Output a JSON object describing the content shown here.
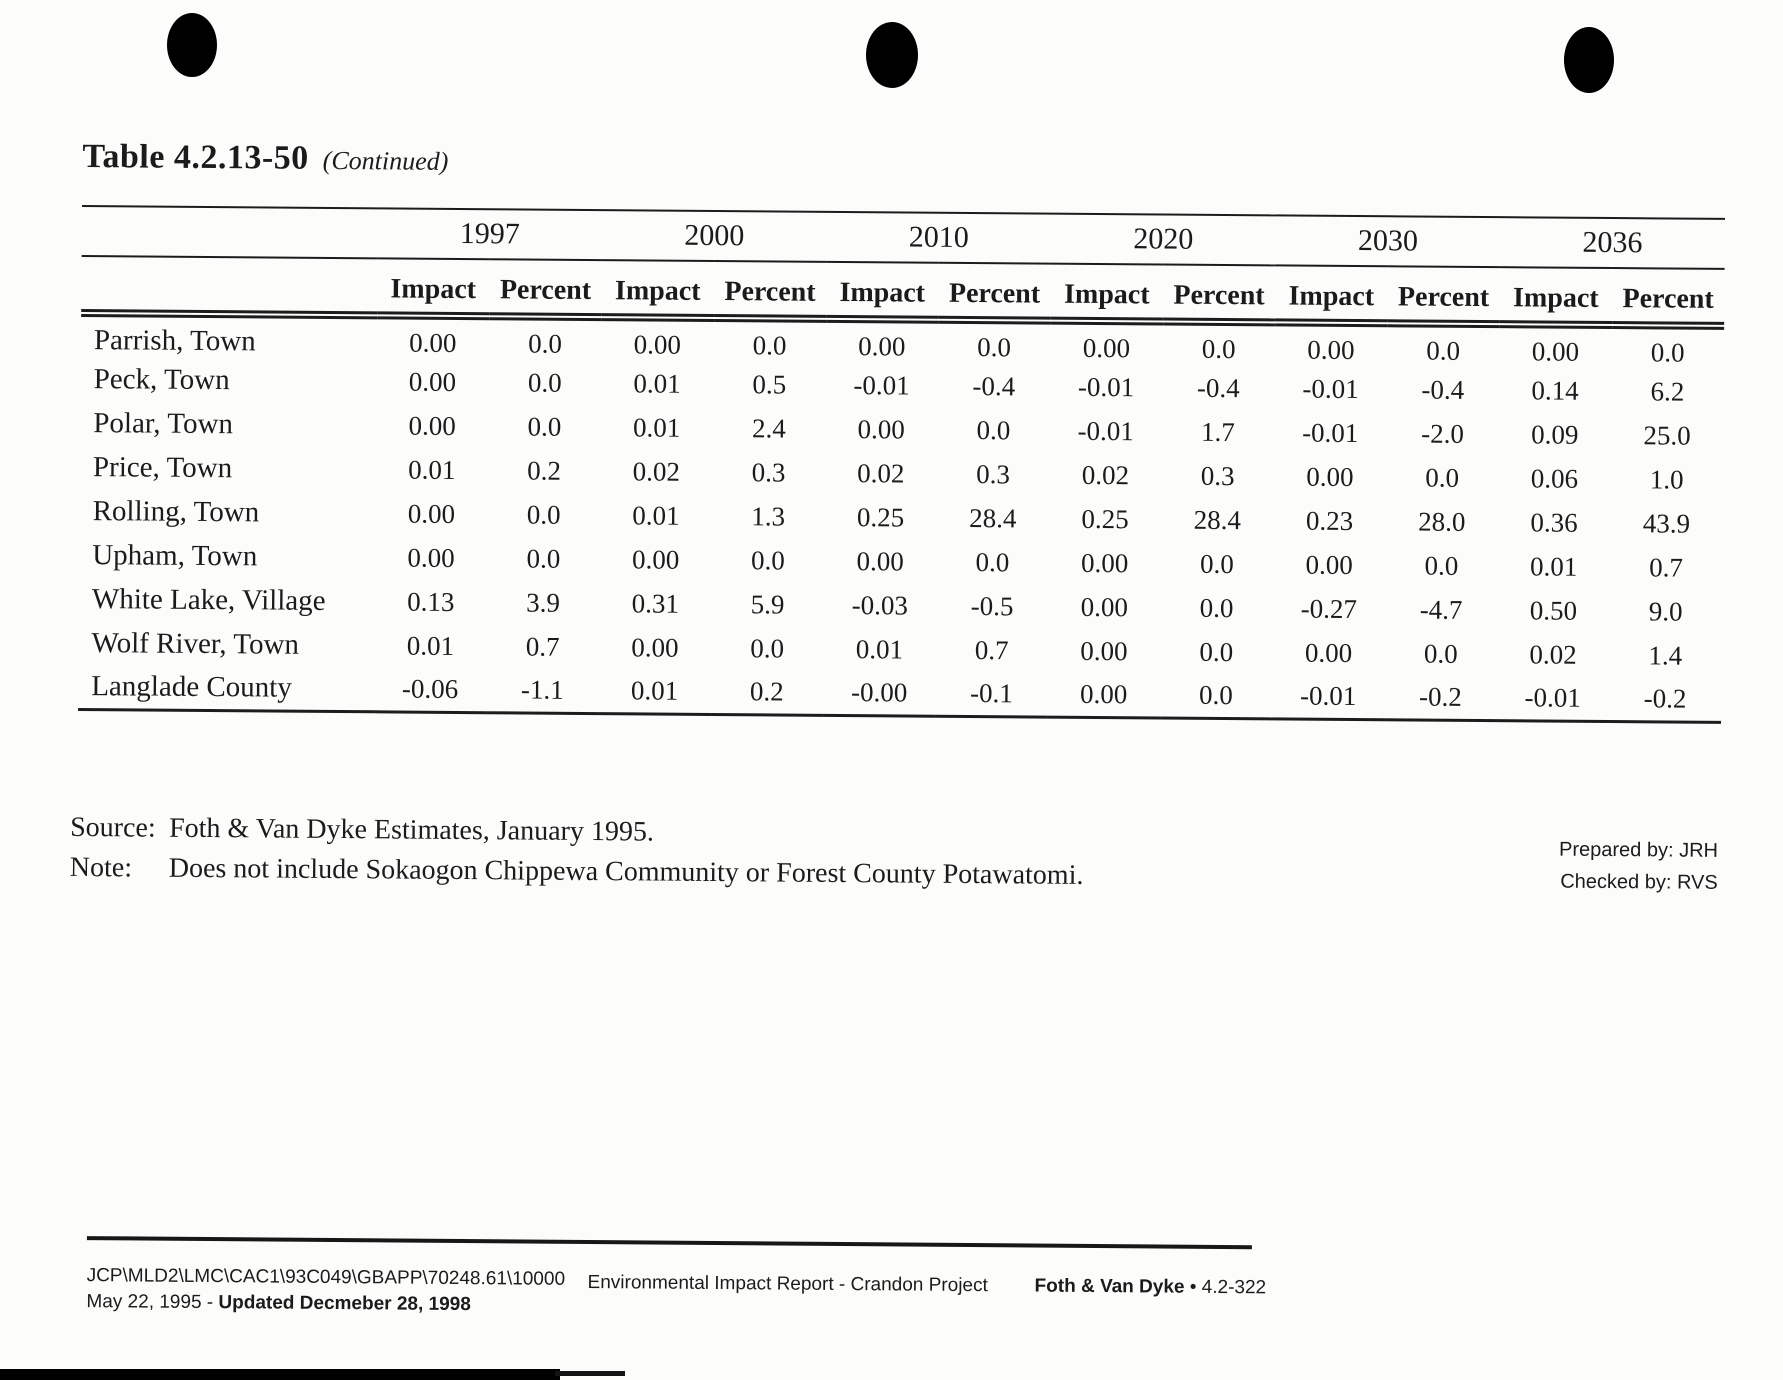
{
  "page": {
    "title": "Table 4.2.13-50",
    "title_suffix": "(Continued)"
  },
  "table": {
    "year_groups": [
      "1997",
      "2000",
      "2010",
      "2020",
      "2030",
      "2036"
    ],
    "sub_headers": [
      "Impact",
      "Percent"
    ],
    "rows": [
      {
        "label": "Parrish, Town",
        "values": [
          "0.00",
          "0.0",
          "0.00",
          "0.0",
          "0.00",
          "0.0",
          "0.00",
          "0.0",
          "0.00",
          "0.0",
          "0.00",
          "0.0"
        ]
      },
      {
        "label": "Peck, Town",
        "values": [
          "0.00",
          "0.0",
          "0.01",
          "0.5",
          "-0.01",
          "-0.4",
          "-0.01",
          "-0.4",
          "-0.01",
          "-0.4",
          "0.14",
          "6.2"
        ]
      },
      {
        "label": "Polar, Town",
        "values": [
          "0.00",
          "0.0",
          "0.01",
          "2.4",
          "0.00",
          "0.0",
          "-0.01",
          "1.7",
          "-0.01",
          "-2.0",
          "0.09",
          "25.0"
        ]
      },
      {
        "label": "Price, Town",
        "values": [
          "0.01",
          "0.2",
          "0.02",
          "0.3",
          "0.02",
          "0.3",
          "0.02",
          "0.3",
          "0.00",
          "0.0",
          "0.06",
          "1.0"
        ]
      },
      {
        "label": "Rolling, Town",
        "values": [
          "0.00",
          "0.0",
          "0.01",
          "1.3",
          "0.25",
          "28.4",
          "0.25",
          "28.4",
          "0.23",
          "28.0",
          "0.36",
          "43.9"
        ]
      },
      {
        "label": "Upham, Town",
        "values": [
          "0.00",
          "0.0",
          "0.00",
          "0.0",
          "0.00",
          "0.0",
          "0.00",
          "0.0",
          "0.00",
          "0.0",
          "0.01",
          "0.7"
        ]
      },
      {
        "label": "White Lake, Village",
        "values": [
          "0.13",
          "3.9",
          "0.31",
          "5.9",
          "-0.03",
          "-0.5",
          "0.00",
          "0.0",
          "-0.27",
          "-4.7",
          "0.50",
          "9.0"
        ]
      },
      {
        "label": "Wolf River, Town",
        "values": [
          "0.01",
          "0.7",
          "0.00",
          "0.0",
          "0.01",
          "0.7",
          "0.00",
          "0.0",
          "0.00",
          "0.0",
          "0.02",
          "1.4"
        ]
      },
      {
        "label": "Langlade County",
        "values": [
          "-0.06",
          "-1.1",
          "0.01",
          "0.2",
          "-0.00",
          "-0.1",
          "0.00",
          "0.0",
          "-0.01",
          "-0.2",
          "-0.01",
          "-0.2"
        ]
      }
    ]
  },
  "notes": {
    "source_label": "Source:",
    "source_text": "Foth & Van Dyke Estimates, January 1995.",
    "note_label": "Note:",
    "note_text": "Does not include Sokaogon Chippewa Community or Forest County Potawatomi.",
    "prepared_by": "Prepared by: JRH",
    "checked_by": "Checked by: RVS"
  },
  "footer": {
    "file_path": "JCP\\MLD2\\LMC\\CAC1\\93C049\\GBAPP\\70248.61\\10000",
    "date_plain": "May 22, 1995 - ",
    "date_bold": "Updated Decmeber 28, 1998",
    "center": "Environmental Impact Report - Crandon Project",
    "company": "Foth & Van Dyke ",
    "page_ref": "• 4.2-322"
  }
}
